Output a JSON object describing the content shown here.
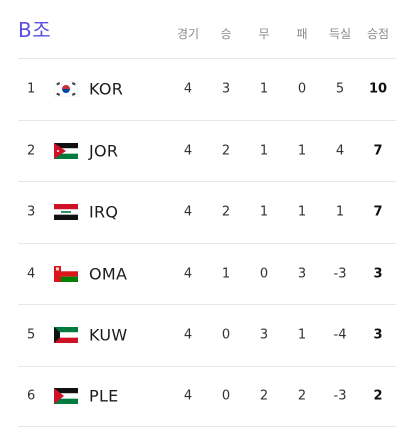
{
  "group_title": "B조",
  "columns": [
    "경기",
    "승",
    "무",
    "패",
    "득실",
    "승점"
  ],
  "rows": [
    {
      "rank": "1",
      "flag": "korea-flag-icon",
      "team": "KOR",
      "played": "4",
      "won": "3",
      "draw": "1",
      "lost": "0",
      "gd": "5",
      "pts": "10"
    },
    {
      "rank": "2",
      "flag": "jordan-flag-icon",
      "team": "JOR",
      "played": "4",
      "won": "2",
      "draw": "1",
      "lost": "1",
      "gd": "4",
      "pts": "7"
    },
    {
      "rank": "3",
      "flag": "iraq-flag-icon",
      "team": "IRQ",
      "played": "4",
      "won": "2",
      "draw": "1",
      "lost": "1",
      "gd": "1",
      "pts": "7"
    },
    {
      "rank": "4",
      "flag": "oman-flag-icon",
      "team": "OMA",
      "played": "4",
      "won": "1",
      "draw": "0",
      "lost": "3",
      "gd": "-3",
      "pts": "3"
    },
    {
      "rank": "5",
      "flag": "kuwait-flag-icon",
      "team": "KUW",
      "played": "4",
      "won": "0",
      "draw": "3",
      "lost": "1",
      "gd": "-4",
      "pts": "3"
    },
    {
      "rank": "6",
      "flag": "palestine-flag-icon",
      "team": "PLE",
      "played": "4",
      "won": "0",
      "draw": "2",
      "lost": "2",
      "gd": "-3",
      "pts": "2"
    }
  ]
}
